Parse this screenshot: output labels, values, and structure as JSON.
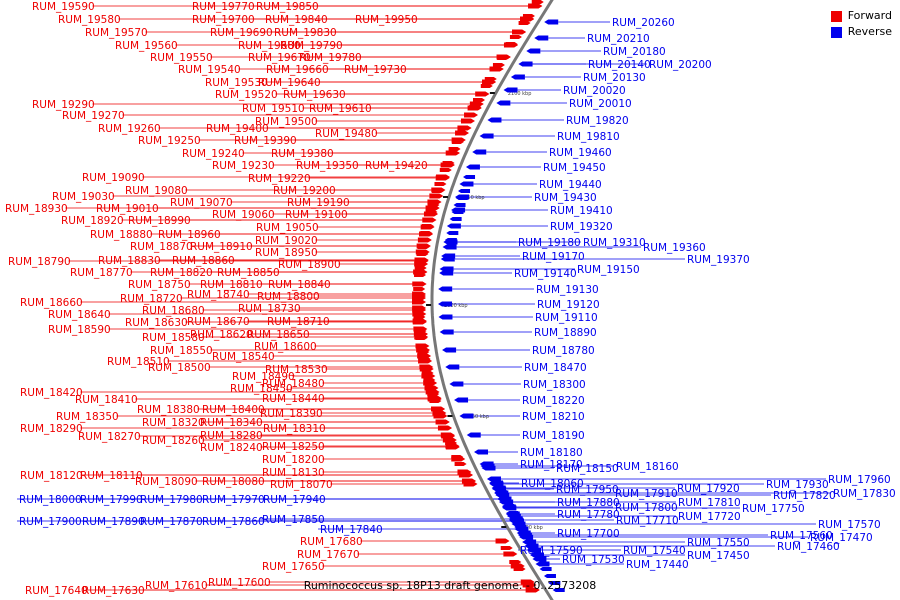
{
  "colors": {
    "forward": "#ee0000",
    "reverse": "#0000ee",
    "backbone": "#777777",
    "tick": "#444444"
  },
  "legend": {
    "forward_label": "Forward",
    "forward_color": "#ee0000",
    "reverse_label": "Reverse",
    "reverse_color": "#0000ee"
  },
  "caption": "Ruminococcus sp. 18P13 draft genome. - 0..2573208",
  "scale_ticks": [
    "2100 kbp",
    "2050 kbp",
    "2000 kbp",
    "1950 kbp",
    "1900 kbp"
  ],
  "forward_genes": [
    "RUM_19590",
    "RUM_19770",
    "RUM_19850",
    "RUM_19580",
    "RUM_19700",
    "RUM_19840",
    "RUM_19950",
    "RUM_19570",
    "RUM_19690",
    "RUM_19830",
    "RUM_19560",
    "RUM_19680",
    "RUM_19790",
    "RUM_19550",
    "RUM_19670",
    "RUM_19780",
    "RUM_19540",
    "RUM_19660",
    "RUM_19730",
    "RUM_19530",
    "RUM_19640",
    "RUM_19520",
    "RUM_19630",
    "RUM_19290",
    "RUM_19510",
    "RUM_19610",
    "RUM_19270",
    "RUM_19500",
    "RUM_19260",
    "RUM_19400",
    "RUM_19480",
    "RUM_19250",
    "RUM_19390",
    "RUM_19240",
    "RUM_19380",
    "RUM_19230",
    "RUM_19350",
    "RUM_19420",
    "RUM_19220",
    "RUM_19090",
    "RUM_19080",
    "RUM_19200",
    "RUM_19030",
    "RUM_19070",
    "RUM_19190",
    "RUM_18930",
    "RUM_19010",
    "RUM_19060",
    "RUM_19100",
    "RUM_18920",
    "RUM_18990",
    "RUM_19050",
    "RUM_18880",
    "RUM_18960",
    "RUM_19020",
    "RUM_18870",
    "RUM_18910",
    "RUM_18950",
    "RUM_18790",
    "RUM_18830",
    "RUM_18860",
    "RUM_18900",
    "RUM_18770",
    "RUM_18820",
    "RUM_18850",
    "RUM_18750",
    "RUM_18810",
    "RUM_18840",
    "RUM_18720",
    "RUM_18740",
    "RUM_18800",
    "RUM_18660",
    "RUM_18680",
    "RUM_18730",
    "RUM_18640",
    "RUM_18670",
    "RUM_18710",
    "RUM_18630",
    "RUM_18590",
    "RUM_18620",
    "RUM_18650",
    "RUM_18580",
    "RUM_18600",
    "RUM_18550",
    "RUM_18540",
    "RUM_18510",
    "RUM_18530",
    "RUM_18500",
    "RUM_18490",
    "RUM_18450",
    "RUM_18480",
    "RUM_18420",
    "RUM_18410",
    "RUM_18440",
    "RUM_18380",
    "RUM_18400",
    "RUM_18350",
    "RUM_18390",
    "RUM_18320",
    "RUM_18340",
    "RUM_18290",
    "RUM_18310",
    "RUM_18270",
    "RUM_18280",
    "RUM_18260",
    "RUM_18240",
    "RUM_18250",
    "RUM_18200",
    "RUM_18120",
    "RUM_18110",
    "RUM_18130",
    "RUM_18090",
    "RUM_18080",
    "RUM_18070",
    "RUM_17680",
    "RUM_17670",
    "RUM_17650",
    "RUM_17640",
    "RUM_17630",
    "RUM_17610",
    "RUM_17600"
  ],
  "reverse_genes": [
    "RUM_20260",
    "RUM_20210",
    "RUM_20180",
    "RUM_20140",
    "RUM_20200",
    "RUM_20130",
    "RUM_20020",
    "RUM_20010",
    "RUM_19820",
    "RUM_19810",
    "RUM_19460",
    "RUM_19450",
    "RUM_19440",
    "RUM_19430",
    "RUM_19410",
    "RUM_19320",
    "RUM_19180",
    "RUM_19310",
    "RUM_19360",
    "RUM_19370",
    "RUM_19170",
    "RUM_19150",
    "RUM_19140",
    "RUM_19130",
    "RUM_19120",
    "RUM_19110",
    "RUM_18890",
    "RUM_18780",
    "RUM_18470",
    "RUM_18300",
    "RUM_18220",
    "RUM_18210",
    "RUM_18190",
    "RUM_18180",
    "RUM_18170",
    "RUM_18150",
    "RUM_18160",
    "RUM_18060",
    "RUM_17930",
    "RUM_17960",
    "RUM_18000",
    "RUM_17990",
    "RUM_17980",
    "RUM_17970",
    "RUM_17940",
    "RUM_17950",
    "RUM_17920",
    "RUM_17830",
    "RUM_17910",
    "RUM_17810",
    "RUM_17820",
    "RUM_17880",
    "RUM_17800",
    "RUM_17750",
    "RUM_17780",
    "RUM_17720",
    "RUM_17900",
    "RUM_17890",
    "RUM_17870",
    "RUM_17860",
    "RUM_17850",
    "RUM_17710",
    "RUM_17570",
    "RUM_17840",
    "RUM_17700",
    "RUM_17470",
    "RUM_17560",
    "RUM_17590",
    "RUM_17550",
    "RUM_17460",
    "RUM_17530",
    "RUM_17540",
    "RUM_17450",
    "RUM_17440"
  ]
}
